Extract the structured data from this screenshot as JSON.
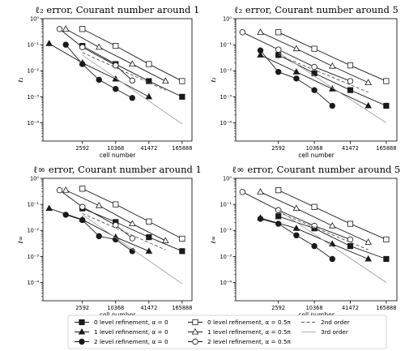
{
  "chart_data": [
    {
      "type": "line",
      "title": "ℓ₂ error, Courant number around 1",
      "xlabel": "cell number",
      "ylabel": "ℓ₂",
      "xscale": "log",
      "yscale": "log",
      "xticks": [
        2592,
        10368,
        41472,
        165888
      ],
      "xtick_labels": [
        "2592",
        "10368",
        "41472",
        "165888"
      ],
      "ytick_labels": [
        "10⁰",
        "10⁻¹",
        "10⁻²",
        "10⁻³",
        "10⁻⁴"
      ],
      "ylim": [
        2e-05,
        1
      ],
      "series": [
        {
          "name": "0 level refinement, α = 0",
          "x": [
            2592,
            10368,
            41472,
            165888
          ],
          "y": [
            0.09,
            0.018,
            0.004,
            0.001
          ]
        },
        {
          "name": "1 level refinement, α = 0",
          "x": [
            648,
            2592,
            10368,
            41472
          ],
          "y": [
            0.11,
            0.02,
            0.0048,
            0.001
          ]
        },
        {
          "name": "2 level refinement, α = 0",
          "x": [
            1296,
            2592,
            5184,
            10368,
            20736
          ],
          "y": [
            0.1,
            0.018,
            0.0045,
            0.002,
            0.0009
          ]
        },
        {
          "name": "0 level refinement, α = 0.5π",
          "x": [
            2592,
            10368,
            41472,
            165888
          ],
          "y": [
            0.4,
            0.09,
            0.018,
            0.004
          ]
        },
        {
          "name": "1 level refinement, α = 0.5π",
          "x": [
            1296,
            5184,
            20736,
            82944
          ],
          "y": [
            0.4,
            0.08,
            0.018,
            0.004
          ]
        },
        {
          "name": "2 level refinement, α = 0.5π",
          "x": [
            1000,
            2592,
            10368,
            20736
          ],
          "y": [
            0.4,
            0.08,
            0.016,
            0.0042
          ]
        },
        {
          "name": "2nd order",
          "x": [
            2592,
            82944
          ],
          "y": [
            0.05,
            0.0018
          ]
        },
        {
          "name": "3rd order",
          "x": [
            2592,
            165888
          ],
          "y": [
            0.04,
            9e-05
          ]
        }
      ]
    },
    {
      "type": "line",
      "title": "ℓ₂ error, Courant number around 5",
      "xlabel": "cell number",
      "ylabel": "ℓ₂",
      "xscale": "log",
      "yscale": "log",
      "xticks": [
        2592,
        10368,
        41472,
        165888
      ],
      "xtick_labels": [
        "2592",
        "10368",
        "41472",
        "165888"
      ],
      "ytick_labels": [
        "10⁰",
        "10⁻¹",
        "10⁻²",
        "10⁻³",
        "10⁻⁴"
      ],
      "ylim": [
        2e-05,
        1
      ],
      "series": [
        {
          "name": "0 level refinement, α = 0",
          "x": [
            2592,
            10368,
            41472,
            165888
          ],
          "y": [
            0.04,
            0.008,
            0.0018,
            0.00045
          ]
        },
        {
          "name": "1 level refinement, α = 0",
          "x": [
            1296,
            5184,
            20736,
            82944
          ],
          "y": [
            0.04,
            0.009,
            0.002,
            0.00045
          ]
        },
        {
          "name": "2 level refinement, α = 0",
          "x": [
            1296,
            2592,
            5184,
            10368,
            20736
          ],
          "y": [
            0.06,
            0.009,
            0.005,
            0.0018,
            0.00045
          ]
        },
        {
          "name": "0 level refinement, α = 0.5π",
          "x": [
            2592,
            10368,
            41472,
            165888
          ],
          "y": [
            0.3,
            0.07,
            0.016,
            0.004
          ]
        },
        {
          "name": "1 level refinement, α = 0.5π",
          "x": [
            1296,
            5184,
            20736,
            82944
          ],
          "y": [
            0.3,
            0.07,
            0.015,
            0.0035
          ]
        },
        {
          "name": "2 level refinement, α = 0.5π",
          "x": [
            648,
            2592,
            10368,
            41472
          ],
          "y": [
            0.3,
            0.065,
            0.014,
            0.004
          ]
        },
        {
          "name": "2nd order",
          "x": [
            2592,
            82944
          ],
          "y": [
            0.04,
            0.0015
          ]
        },
        {
          "name": "3rd order",
          "x": [
            2592,
            165888
          ],
          "y": [
            0.05,
            0.0001
          ]
        }
      ]
    },
    {
      "type": "line",
      "title": "ℓ∞ error, Courant number around 1",
      "xlabel": "cell number",
      "ylabel": "ℓ∞",
      "xscale": "log",
      "yscale": "log",
      "xticks": [
        2592,
        10368,
        41472,
        165888
      ],
      "xtick_labels": [
        "2592",
        "10368",
        "41472",
        "165888"
      ],
      "ytick_labels": [
        "10⁰",
        "10⁻¹",
        "10⁻²",
        "10⁻³",
        "10⁻⁴"
      ],
      "ylim": [
        2e-05,
        1
      ],
      "series": [
        {
          "name": "0 level refinement, α = 0",
          "x": [
            2592,
            10368,
            41472,
            165888
          ],
          "y": [
            0.07,
            0.021,
            0.0055,
            0.0016
          ]
        },
        {
          "name": "1 level refinement, α = 0",
          "x": [
            648,
            2592,
            10368,
            41472
          ],
          "y": [
            0.07,
            0.026,
            0.0055,
            0.0016
          ]
        },
        {
          "name": "2 level refinement, α = 0",
          "x": [
            1296,
            2592,
            5184,
            10368,
            20736
          ],
          "y": [
            0.04,
            0.025,
            0.006,
            0.0045,
            0.0016
          ]
        },
        {
          "name": "0 level refinement, α = 0.5π",
          "x": [
            2592,
            10368,
            41472,
            165888
          ],
          "y": [
            0.4,
            0.1,
            0.022,
            0.0048
          ]
        },
        {
          "name": "1 level refinement, α = 0.5π",
          "x": [
            1296,
            5184,
            20736,
            82944
          ],
          "y": [
            0.35,
            0.09,
            0.018,
            0.004
          ]
        },
        {
          "name": "2 level refinement, α = 0.5π",
          "x": [
            1000,
            2592,
            10368,
            20736
          ],
          "y": [
            0.35,
            0.08,
            0.016,
            0.005
          ]
        },
        {
          "name": "2nd order",
          "x": [
            2592,
            82944
          ],
          "y": [
            0.045,
            0.0018
          ]
        },
        {
          "name": "3rd order",
          "x": [
            2592,
            165888
          ],
          "y": [
            0.04,
            9e-05
          ]
        }
      ]
    },
    {
      "type": "line",
      "title": "ℓ∞ error, Courant number around 5",
      "xlabel": "cell number",
      "ylabel": "ℓ∞",
      "xscale": "log",
      "yscale": "log",
      "xticks": [
        2592,
        10368,
        41472,
        165888
      ],
      "xtick_labels": [
        "2592",
        "10368",
        "41472",
        "165888"
      ],
      "ytick_labels": [
        "10⁰",
        "10⁻¹",
        "10⁻²",
        "10⁻³",
        "10⁻⁴"
      ],
      "ylim": [
        2e-05,
        1
      ],
      "series": [
        {
          "name": "0 level refinement, α = 0",
          "x": [
            2592,
            10368,
            41472,
            165888
          ],
          "y": [
            0.035,
            0.012,
            0.0025,
            0.0008
          ]
        },
        {
          "name": "1 level refinement, α = 0",
          "x": [
            1296,
            5184,
            20736,
            82944
          ],
          "y": [
            0.03,
            0.012,
            0.003,
            0.0008
          ]
        },
        {
          "name": "2 level refinement, α = 0",
          "x": [
            1296,
            2592,
            5184,
            10368,
            20736
          ],
          "y": [
            0.028,
            0.018,
            0.0065,
            0.0025,
            0.0008
          ]
        },
        {
          "name": "0 level refinement, α = 0.5π",
          "x": [
            2592,
            10368,
            41472,
            165888
          ],
          "y": [
            0.35,
            0.08,
            0.018,
            0.0045
          ]
        },
        {
          "name": "1 level refinement, α = 0.5π",
          "x": [
            1296,
            5184,
            20736,
            82944
          ],
          "y": [
            0.3,
            0.07,
            0.015,
            0.0035
          ]
        },
        {
          "name": "2 level refinement, α = 0.5π",
          "x": [
            648,
            2592,
            10368,
            41472
          ],
          "y": [
            0.3,
            0.06,
            0.015,
            0.0045
          ]
        },
        {
          "name": "2nd order",
          "x": [
            2592,
            82944
          ],
          "y": [
            0.05,
            0.0018
          ]
        },
        {
          "name": "3rd order",
          "x": [
            2592,
            165888
          ],
          "y": [
            0.06,
            0.0001
          ]
        }
      ]
    }
  ],
  "legend": {
    "placement": "bottom-center",
    "entries": [
      "0 level refinement, α = 0",
      "1 level refinement, α = 0",
      "2 level refinement, α = 0",
      "0 level refinement, α = 0.5π",
      "1 level refinement, α = 0.5π",
      "2 level refinement, α = 0.5π",
      "2nd order",
      "3rd order"
    ]
  },
  "styles": {
    "data_color": "#1a1a1a",
    "order_line_color": "#555555",
    "third_order_color": "#9a9a9a",
    "axes_color": "#000000"
  }
}
